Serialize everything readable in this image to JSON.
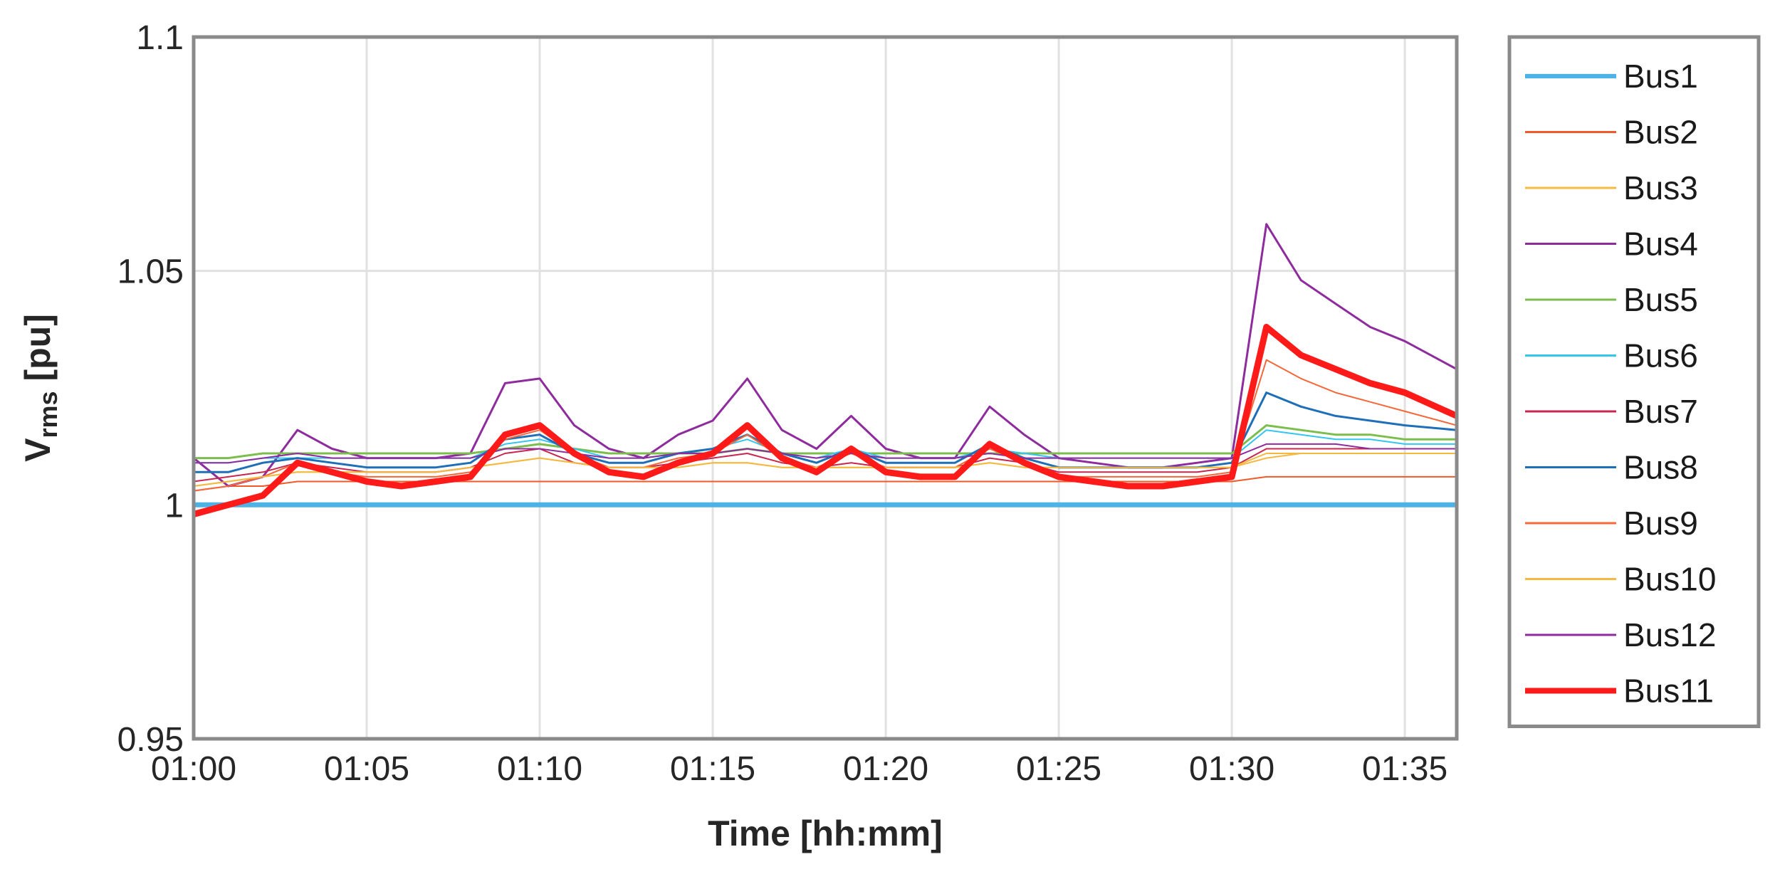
{
  "chart_data": {
    "type": "line",
    "title": "",
    "xlabel": "Time [hh:mm]",
    "ylabel": {
      "main": "V",
      "sub": "rms",
      "suffix": " [pu]"
    },
    "xlim": [
      0,
      36.5
    ],
    "ylim": [
      0.95,
      1.1
    ],
    "x_ticks": [
      0,
      5,
      10,
      15,
      20,
      25,
      30,
      35
    ],
    "x_tick_labels": [
      "01:00",
      "01:05",
      "01:10",
      "01:15",
      "01:20",
      "01:25",
      "01:30",
      "01:35"
    ],
    "y_ticks": [
      0.95,
      1.0,
      1.05,
      1.1
    ],
    "y_tick_labels": [
      "0.95",
      "1",
      "1.05",
      "1.1"
    ],
    "grid": true,
    "legend_position": "outside-right",
    "x": [
      0,
      1,
      2,
      3,
      4,
      5,
      6,
      7,
      8,
      9,
      10,
      11,
      12,
      13,
      14,
      15,
      16,
      17,
      18,
      19,
      20,
      21,
      22,
      23,
      24,
      25,
      26,
      27,
      28,
      29,
      30,
      31,
      32,
      33,
      34,
      35,
      36.5
    ],
    "series": [
      {
        "name": "Bus1",
        "color": "#4DB3E6",
        "width": 7,
        "values": [
          1.0,
          1.0,
          1.0,
          1.0,
          1.0,
          1.0,
          1.0,
          1.0,
          1.0,
          1.0,
          1.0,
          1.0,
          1.0,
          1.0,
          1.0,
          1.0,
          1.0,
          1.0,
          1.0,
          1.0,
          1.0,
          1.0,
          1.0,
          1.0,
          1.0,
          1.0,
          1.0,
          1.0,
          1.0,
          1.0,
          1.0,
          1.0,
          1.0,
          1.0,
          1.0,
          1.0,
          1.0
        ]
      },
      {
        "name": "Bus2",
        "color": "#F05A28",
        "width": 2,
        "values": [
          1.003,
          1.004,
          1.004,
          1.005,
          1.005,
          1.005,
          1.005,
          1.005,
          1.005,
          1.005,
          1.005,
          1.005,
          1.005,
          1.005,
          1.005,
          1.005,
          1.005,
          1.005,
          1.005,
          1.005,
          1.005,
          1.005,
          1.005,
          1.005,
          1.005,
          1.005,
          1.005,
          1.005,
          1.005,
          1.005,
          1.005,
          1.006,
          1.006,
          1.006,
          1.006,
          1.006,
          1.006
        ]
      },
      {
        "name": "Bus3",
        "color": "#F5B941",
        "width": 2,
        "values": [
          1.004,
          1.005,
          1.006,
          1.007,
          1.007,
          1.007,
          1.007,
          1.007,
          1.008,
          1.009,
          1.01,
          1.009,
          1.008,
          1.008,
          1.008,
          1.009,
          1.009,
          1.008,
          1.008,
          1.008,
          1.008,
          1.008,
          1.008,
          1.009,
          1.008,
          1.008,
          1.008,
          1.008,
          1.008,
          1.008,
          1.008,
          1.01,
          1.011,
          1.011,
          1.011,
          1.011,
          1.011
        ]
      },
      {
        "name": "Bus4",
        "color": "#8E2C9E",
        "width": 3,
        "values": [
          1.01,
          1.004,
          1.006,
          1.016,
          1.012,
          1.01,
          1.01,
          1.01,
          1.011,
          1.026,
          1.027,
          1.017,
          1.012,
          1.01,
          1.015,
          1.018,
          1.027,
          1.016,
          1.012,
          1.019,
          1.012,
          1.01,
          1.01,
          1.021,
          1.015,
          1.01,
          1.009,
          1.008,
          1.008,
          1.009,
          1.01,
          1.06,
          1.048,
          1.043,
          1.038,
          1.035,
          1.029
        ]
      },
      {
        "name": "Bus5",
        "color": "#7CBE4E",
        "width": 3,
        "values": [
          1.01,
          1.01,
          1.011,
          1.011,
          1.011,
          1.011,
          1.011,
          1.011,
          1.011,
          1.012,
          1.013,
          1.012,
          1.011,
          1.011,
          1.011,
          1.011,
          1.012,
          1.011,
          1.011,
          1.011,
          1.011,
          1.011,
          1.011,
          1.011,
          1.011,
          1.011,
          1.011,
          1.011,
          1.011,
          1.011,
          1.011,
          1.017,
          1.016,
          1.015,
          1.015,
          1.014,
          1.014
        ]
      },
      {
        "name": "Bus6",
        "color": "#35C6F0",
        "width": 2,
        "values": [
          1.009,
          1.009,
          1.01,
          1.01,
          1.01,
          1.01,
          1.01,
          1.01,
          1.01,
          1.013,
          1.014,
          1.012,
          1.01,
          1.01,
          1.011,
          1.012,
          1.014,
          1.011,
          1.01,
          1.012,
          1.01,
          1.01,
          1.01,
          1.012,
          1.011,
          1.01,
          1.01,
          1.01,
          1.01,
          1.01,
          1.01,
          1.016,
          1.015,
          1.014,
          1.014,
          1.013,
          1.013
        ]
      },
      {
        "name": "Bus7",
        "color": "#C8284F",
        "width": 2,
        "values": [
          1.005,
          1.006,
          1.007,
          1.009,
          1.008,
          1.007,
          1.007,
          1.007,
          1.008,
          1.011,
          1.012,
          1.009,
          1.008,
          1.008,
          1.009,
          1.01,
          1.011,
          1.009,
          1.008,
          1.009,
          1.008,
          1.008,
          1.008,
          1.01,
          1.009,
          1.007,
          1.007,
          1.007,
          1.007,
          1.007,
          1.008,
          1.012,
          1.012,
          1.012,
          1.012,
          1.012,
          1.012
        ]
      },
      {
        "name": "Bus8",
        "color": "#1F6FB8",
        "width": 3,
        "values": [
          1.007,
          1.007,
          1.009,
          1.01,
          1.009,
          1.008,
          1.008,
          1.008,
          1.009,
          1.014,
          1.015,
          1.011,
          1.009,
          1.009,
          1.011,
          1.012,
          1.015,
          1.011,
          1.009,
          1.012,
          1.009,
          1.009,
          1.009,
          1.013,
          1.01,
          1.008,
          1.008,
          1.008,
          1.008,
          1.008,
          1.009,
          1.024,
          1.021,
          1.019,
          1.018,
          1.017,
          1.016
        ]
      },
      {
        "name": "Bus9",
        "color": "#F4683A",
        "width": 2,
        "values": [
          1.003,
          1.004,
          1.006,
          1.009,
          1.007,
          1.006,
          1.006,
          1.006,
          1.007,
          1.014,
          1.016,
          1.011,
          1.008,
          1.008,
          1.01,
          1.011,
          1.015,
          1.01,
          1.008,
          1.011,
          1.008,
          1.008,
          1.008,
          1.012,
          1.009,
          1.006,
          1.006,
          1.006,
          1.006,
          1.006,
          1.007,
          1.031,
          1.027,
          1.024,
          1.022,
          1.02,
          1.017
        ]
      },
      {
        "name": "Bus10",
        "color": "#F5B941",
        "width": 2,
        "values": [
          1.004,
          1.005,
          1.006,
          1.007,
          1.007,
          1.007,
          1.007,
          1.007,
          1.008,
          1.009,
          1.01,
          1.009,
          1.008,
          1.008,
          1.008,
          1.009,
          1.009,
          1.008,
          1.008,
          1.008,
          1.008,
          1.008,
          1.008,
          1.009,
          1.008,
          1.008,
          1.008,
          1.008,
          1.008,
          1.008,
          1.008,
          1.011,
          1.011,
          1.011,
          1.011,
          1.011,
          1.011
        ]
      },
      {
        "name": "Bus12",
        "color": "#8E2C9E",
        "width": 2,
        "values": [
          1.009,
          1.009,
          1.01,
          1.011,
          1.01,
          1.01,
          1.01,
          1.01,
          1.01,
          1.012,
          1.012,
          1.011,
          1.01,
          1.01,
          1.011,
          1.011,
          1.012,
          1.011,
          1.01,
          1.011,
          1.01,
          1.01,
          1.01,
          1.011,
          1.01,
          1.01,
          1.01,
          1.01,
          1.01,
          1.01,
          1.01,
          1.013,
          1.013,
          1.013,
          1.012,
          1.012,
          1.012
        ]
      },
      {
        "name": "Bus11",
        "color": "#FF1A1A",
        "width": 9,
        "values": [
          0.998,
          1.0,
          1.002,
          1.009,
          1.007,
          1.005,
          1.004,
          1.005,
          1.006,
          1.015,
          1.017,
          1.011,
          1.007,
          1.006,
          1.009,
          1.011,
          1.017,
          1.01,
          1.007,
          1.012,
          1.007,
          1.006,
          1.006,
          1.013,
          1.009,
          1.006,
          1.005,
          1.004,
          1.004,
          1.005,
          1.006,
          1.038,
          1.032,
          1.029,
          1.026,
          1.024,
          1.019
        ]
      }
    ]
  }
}
